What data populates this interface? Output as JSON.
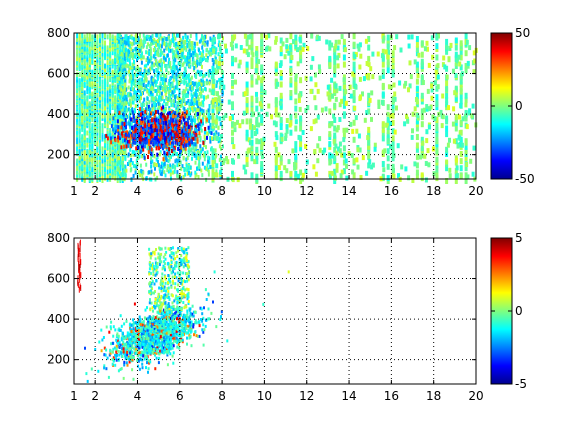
{
  "chart_data": [
    {
      "type": "heatmap",
      "title": "",
      "xlabel": "",
      "ylabel": "",
      "xlim": [
        1,
        20
      ],
      "ylim": [
        80,
        800
      ],
      "xticks": [
        "1",
        "2",
        "4",
        "6",
        "8",
        "10",
        "12",
        "14",
        "16",
        "18",
        "20"
      ],
      "yticks": [
        "200",
        "400",
        "600",
        "800"
      ],
      "grid": true,
      "colormap": "jet",
      "clim": [
        -50,
        50
      ],
      "colorbar_ticks": [
        "50",
        "0",
        "-50"
      ],
      "features": [
        {
          "x": [
            1,
            3
          ],
          "y": [
            80,
            800
          ],
          "value": 0,
          "description": "dense vertical striations"
        },
        {
          "x": [
            3,
            7.5
          ],
          "y": [
            220,
            420
          ],
          "value": -35,
          "description": "strong blue core with red/orange patches"
        },
        {
          "x": [
            4,
            6.5
          ],
          "y": [
            400,
            800
          ],
          "value": 5,
          "description": "dense yellow-cyan cloud"
        },
        {
          "x": [
            7,
            20
          ],
          "y": [
            80,
            800
          ],
          "value": 0,
          "description": "sparse scattered green/cyan speckle"
        }
      ]
    },
    {
      "type": "heatmap",
      "title": "",
      "xlabel": "",
      "ylabel": "",
      "xlim": [
        1,
        20
      ],
      "ylim": [
        80,
        800
      ],
      "xticks": [
        "1",
        "2",
        "4",
        "6",
        "8",
        "10",
        "12",
        "14",
        "16",
        "18",
        "20"
      ],
      "yticks": [
        "200",
        "400",
        "600",
        "800"
      ],
      "grid": true,
      "colormap": "jet",
      "clim": [
        -5,
        5
      ],
      "colorbar_ticks": [
        "5",
        "0",
        "-5"
      ],
      "features": [
        {
          "x": [
            3.2,
            7.5
          ],
          "y": [
            220,
            450
          ],
          "value": 1,
          "description": "main cyan-green cluster"
        },
        {
          "x": [
            4.5,
            6.3
          ],
          "y": [
            450,
            760
          ],
          "value": 0.5,
          "description": "upper scattered cluster"
        },
        {
          "x": [
            1,
            1.5
          ],
          "y": [
            560,
            800
          ],
          "value": 3,
          "description": "thin red trace at left edge"
        },
        {
          "x": [
            7,
            11.5
          ],
          "y": [
            80,
            680
          ],
          "value": 0,
          "description": "few isolated points"
        }
      ]
    }
  ]
}
